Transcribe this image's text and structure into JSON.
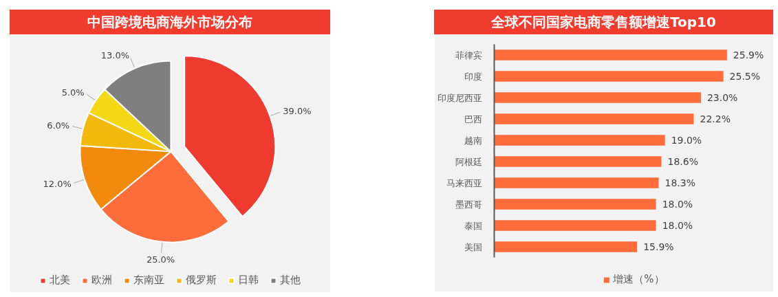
{
  "chart_data": [
    {
      "type": "pie",
      "title": "中国跨境电商海外市场分布",
      "categories": [
        "北美",
        "欧洲",
        "东南亚",
        "俄罗斯",
        "日韩",
        "其他"
      ],
      "values": [
        39.0,
        25.0,
        12.0,
        6.0,
        5.0,
        13.0
      ],
      "colors": [
        "#ef3b2f",
        "#fd6c3b",
        "#f28b0d",
        "#f0b90b",
        "#f5d815",
        "#7f7f7f"
      ],
      "value_labels": [
        "39.0%",
        "25.0%",
        "12.0%",
        "6.0%",
        "5.0%",
        "13.0%"
      ],
      "legend": "bottom"
    },
    {
      "type": "bar",
      "orientation": "horizontal",
      "title": "全球不同国家电商零售额增速Top10",
      "categories": [
        "菲律宾",
        "印度",
        "印度尼西亚",
        "巴西",
        "越南",
        "阿根廷",
        "马来西亚",
        "墨西哥",
        "泰国",
        "美国"
      ],
      "series": [
        {
          "name": "增速（%）",
          "color": "#fd6c3b",
          "values": [
            25.9,
            25.5,
            23.0,
            22.2,
            19.0,
            18.6,
            18.3,
            18.0,
            18.0,
            15.9
          ],
          "value_labels": [
            "25.9%",
            "25.5%",
            "23.0%",
            "22.2%",
            "19.0%",
            "18.6%",
            "18.3%",
            "18.0%",
            "18.0%",
            "15.9%"
          ]
        }
      ],
      "tick_labels": "y",
      "legend": "bottom"
    }
  ]
}
